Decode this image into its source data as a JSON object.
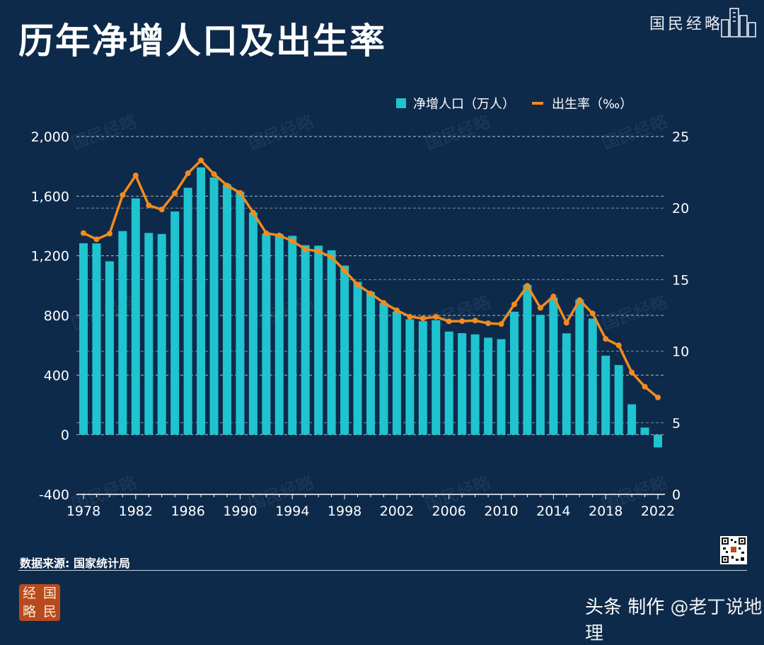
{
  "header": {
    "title": "历年净增人口及出生率",
    "brand": "国民经略"
  },
  "legend": {
    "bar_label": "净增人口（万人）",
    "line_label": "出生率（‰）"
  },
  "watermark": "国民经略",
  "footer": {
    "source": "数据来源: 国家统计局",
    "seal_chars": [
      "经",
      "国",
      "略",
      "民"
    ],
    "author_prefix": "头条 制作 ",
    "author_name": "@老丁说地理"
  },
  "colors": {
    "background": "#0e2a4b",
    "bar": "#1fc4cf",
    "line": "#f38b1c",
    "grid": "#c9d3df"
  },
  "chart_data": {
    "type": "bar",
    "title": "历年净增人口及出生率",
    "x": [
      1978,
      1979,
      1980,
      1981,
      1982,
      1983,
      1984,
      1985,
      1986,
      1987,
      1988,
      1989,
      1990,
      1991,
      1992,
      1993,
      1994,
      1995,
      1996,
      1997,
      1998,
      1999,
      2000,
      2001,
      2002,
      2003,
      2004,
      2005,
      2006,
      2007,
      2008,
      2009,
      2010,
      2011,
      2012,
      2013,
      2014,
      2015,
      2016,
      2017,
      2018,
      2019,
      2020,
      2021,
      2022
    ],
    "x_tick_labels": [
      "1978",
      "1982",
      "1986",
      "1990",
      "1994",
      "1998",
      "2002",
      "2006",
      "2010",
      "2014",
      "2018",
      "2022"
    ],
    "y_left": {
      "ylim": [
        -400,
        2000
      ],
      "tick_labels": [
        "-400",
        "0",
        "400",
        "800",
        "1,200",
        "1,600",
        "2,000"
      ],
      "ticks": [
        -400,
        0,
        400,
        800,
        1200,
        1600,
        2000
      ]
    },
    "y_right": {
      "ylim": [
        0,
        25
      ],
      "tick_labels": [
        "0",
        "5",
        "10",
        "15",
        "20",
        "25"
      ],
      "ticks": [
        0,
        5,
        10,
        15,
        20,
        25
      ]
    },
    "grid": true,
    "legend_position": "top-right",
    "series": [
      {
        "name": "净增人口（万人）",
        "type": "bar",
        "axis": "left",
        "values": [
          1284,
          1283,
          1163,
          1366,
          1585,
          1353,
          1346,
          1497,
          1656,
          1793,
          1726,
          1678,
          1629,
          1490,
          1348,
          1346,
          1334,
          1271,
          1268,
          1237,
          1134,
          1025,
          957,
          884,
          826,
          774,
          761,
          768,
          692,
          681,
          673,
          651,
          641,
          825,
          1005,
          804,
          920,
          680,
          906,
          779,
          530,
          467,
          204,
          48,
          -85
        ]
      },
      {
        "name": "出生率（‰）",
        "type": "line",
        "axis": "right",
        "values": [
          18.25,
          17.82,
          18.21,
          20.91,
          22.28,
          20.19,
          19.9,
          21.04,
          22.43,
          23.33,
          22.37,
          21.58,
          21.06,
          19.68,
          18.24,
          18.09,
          17.7,
          17.12,
          16.98,
          16.57,
          15.64,
          14.64,
          14.03,
          13.38,
          12.86,
          12.41,
          12.29,
          12.4,
          12.09,
          12.1,
          12.14,
          11.95,
          11.9,
          13.27,
          14.57,
          13.03,
          13.83,
          11.99,
          13.57,
          12.64,
          10.86,
          10.41,
          8.52,
          7.52,
          6.77
        ]
      }
    ]
  }
}
